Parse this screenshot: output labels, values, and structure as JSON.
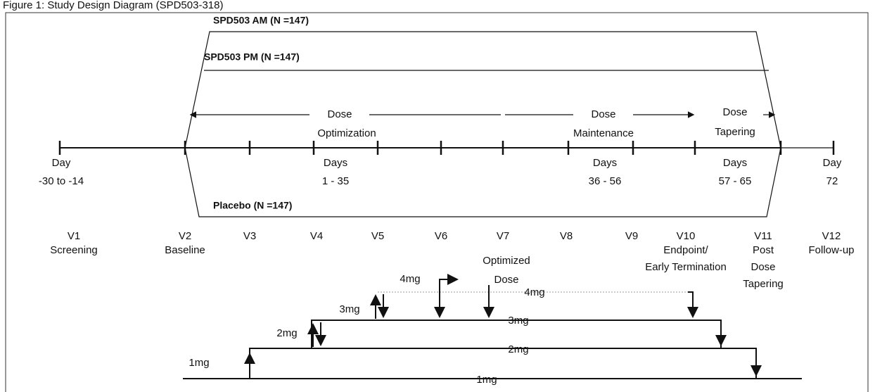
{
  "header": {
    "title": "Figure 1: Study Design Diagram (SPD503-318)"
  },
  "arms": {
    "am": "SPD503 AM (N =147)",
    "pm": "SPD503 PM (N =147)",
    "placebo": "Placebo (N =147)"
  },
  "phases": [
    [
      "Dose",
      "Optimization"
    ],
    [
      "Dose",
      "Maintenance"
    ],
    [
      "Dose",
      "Tapering"
    ]
  ],
  "days": [
    [
      "Day",
      "-30 to -14"
    ],
    [
      "Days",
      "1 - 35"
    ],
    [
      "Days",
      "36 - 56"
    ],
    [
      "Days",
      "57 - 65"
    ],
    [
      "Day",
      "72"
    ]
  ],
  "visits": [
    {
      "label": "V1",
      "desc": [
        "Screening"
      ]
    },
    {
      "label": "V2",
      "desc": [
        "Baseline"
      ]
    },
    {
      "label": "V3",
      "desc": []
    },
    {
      "label": "V4",
      "desc": []
    },
    {
      "label": "V5",
      "desc": []
    },
    {
      "label": "V6",
      "desc": []
    },
    {
      "label": "V7",
      "desc": []
    },
    {
      "label": "V8",
      "desc": []
    },
    {
      "label": "V9",
      "desc": []
    },
    {
      "label": "V10",
      "desc": [
        "Endpoint/",
        "Early Termination"
      ]
    },
    {
      "label": "V11",
      "desc": [
        "Post",
        "Dose",
        "Tapering"
      ]
    },
    {
      "label": "V12",
      "desc": [
        "Follow-up"
      ]
    }
  ],
  "dosing": {
    "up": [
      "4mg",
      "3mg",
      "2mg",
      "1mg"
    ],
    "optimized": [
      "Optimized",
      "Dose"
    ],
    "levels": [
      "4mg",
      "3mg",
      "2mg",
      "1mg"
    ]
  }
}
